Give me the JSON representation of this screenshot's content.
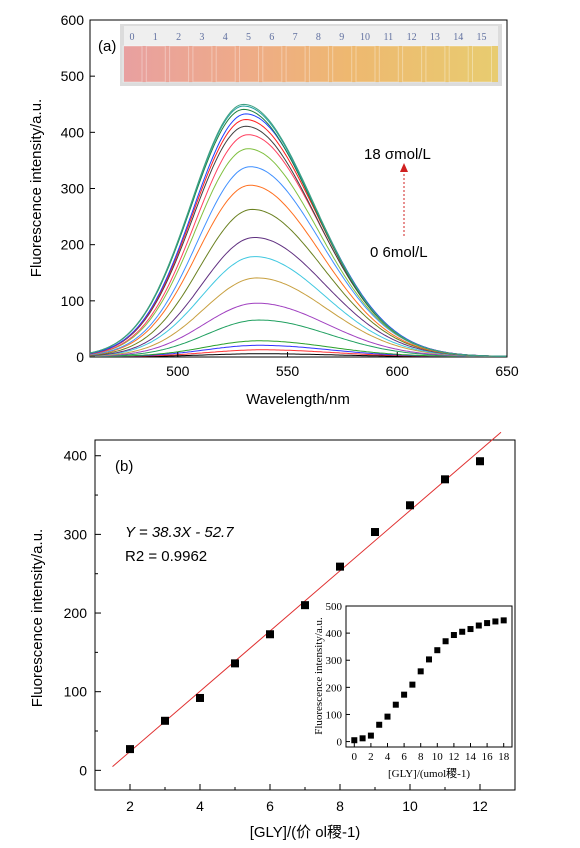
{
  "chart_data": [
    {
      "type": "line",
      "panel_label": "(a)",
      "xlabel": "Wavelength/nm",
      "ylabel": "Fluorescence intensity/a.u.",
      "xlim": [
        460,
        650
      ],
      "ylim": [
        0,
        600
      ],
      "xticks": [
        500,
        550,
        600,
        650
      ],
      "yticks": [
        0,
        100,
        200,
        300,
        400,
        500,
        600
      ],
      "annotation_top": "18 σmol/L",
      "annotation_bottom": "0 6mol/L",
      "inset_photo_labels": [
        "0",
        "1",
        "2",
        "3",
        "4",
        "5",
        "6",
        "7",
        "8",
        "9",
        "10",
        "11",
        "12",
        "13",
        "14",
        "15"
      ],
      "series": [
        {
          "peak": 5,
          "peak_wavelength": 538,
          "color": "#000000"
        },
        {
          "peak": 12,
          "peak_wavelength": 538,
          "color": "#ff3030"
        },
        {
          "peak": 20,
          "peak_wavelength": 537,
          "color": "#3030ff"
        },
        {
          "peak": 28,
          "peak_wavelength": 537,
          "color": "#2aa02a"
        },
        {
          "peak": 65,
          "peak_wavelength": 537,
          "color": "#20a060"
        },
        {
          "peak": 95,
          "peak_wavelength": 536,
          "color": "#a040c0"
        },
        {
          "peak": 140,
          "peak_wavelength": 536,
          "color": "#c8a040"
        },
        {
          "peak": 178,
          "peak_wavelength": 535,
          "color": "#40c8e0"
        },
        {
          "peak": 212,
          "peak_wavelength": 535,
          "color": "#603080"
        },
        {
          "peak": 262,
          "peak_wavelength": 534,
          "color": "#6a8020"
        },
        {
          "peak": 305,
          "peak_wavelength": 533,
          "color": "#ff7020"
        },
        {
          "peak": 338,
          "peak_wavelength": 533,
          "color": "#4090ff"
        },
        {
          "peak": 370,
          "peak_wavelength": 532,
          "color": "#80c040"
        },
        {
          "peak": 395,
          "peak_wavelength": 532,
          "color": "#ff4060"
        },
        {
          "peak": 410,
          "peak_wavelength": 531,
          "color": "#404040"
        },
        {
          "peak": 422,
          "peak_wavelength": 531,
          "color": "#ff2020"
        },
        {
          "peak": 432,
          "peak_wavelength": 531,
          "color": "#2040ff"
        },
        {
          "peak": 440,
          "peak_wavelength": 530,
          "color": "#208040"
        },
        {
          "peak": 446,
          "peak_wavelength": 530,
          "color": "#20a0a0"
        },
        {
          "peak": 449,
          "peak_wavelength": 530,
          "color": "#40a080"
        }
      ]
    },
    {
      "type": "scatter",
      "panel_label": "(b)",
      "xlabel": "[GLY]/(价 ol稷-1)",
      "ylabel": "Fluorescence intensity/a.u.",
      "xlim": [
        1,
        13
      ],
      "ylim": [
        -25,
        420
      ],
      "xticks": [
        2,
        4,
        6,
        8,
        10,
        12
      ],
      "yticks": [
        0,
        100,
        200,
        300,
        400
      ],
      "equation": "Y = 38.3X - 52.7",
      "r2_text": "R2 = 0.9962",
      "x": [
        2,
        3,
        4,
        5,
        6,
        7,
        8,
        9,
        10,
        11,
        12
      ],
      "y": [
        27,
        63,
        92,
        136,
        173,
        210,
        259,
        303,
        337,
        370,
        393
      ],
      "fit": {
        "slope": 38.3,
        "intercept": -52.7,
        "x_range": [
          1.5,
          12.6
        ],
        "color": "#e03030"
      },
      "inset": {
        "type": "scatter",
        "xlabel": "[GLY]/(umol稷-1)",
        "ylabel": "Fluorescence intensity/a.u.",
        "xlim": [
          -1,
          19
        ],
        "ylim": [
          -20,
          500
        ],
        "xticks": [
          0,
          2,
          4,
          6,
          8,
          10,
          12,
          14,
          16,
          18
        ],
        "yticks": [
          0,
          100,
          200,
          300,
          400,
          500
        ],
        "x": [
          0,
          1,
          2,
          3,
          4,
          5,
          6,
          7,
          8,
          9,
          10,
          11,
          12,
          13,
          14,
          15,
          16,
          17,
          18
        ],
        "y": [
          5,
          12,
          22,
          62,
          92,
          136,
          173,
          210,
          259,
          303,
          337,
          370,
          393,
          405,
          415,
          428,
          437,
          443,
          447
        ]
      }
    }
  ]
}
